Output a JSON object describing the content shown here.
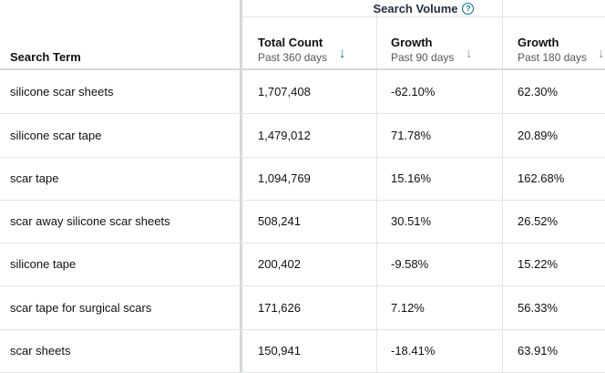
{
  "header": {
    "group_title": "Search Volume",
    "help_icon": "question-circle-icon",
    "columns": {
      "search_term": "Search Term",
      "total_count": {
        "title": "Total Count",
        "sub": "Past 360 days",
        "sort_icon": "arrow-down-icon",
        "sort_color": "#007185"
      },
      "growth_90": {
        "title": "Growth",
        "sub": "Past 90 days",
        "sort_icon": "arrow-down-icon",
        "sort_color": "#8d9096"
      },
      "growth_180": {
        "title": "Growth",
        "sub": "Past 180 days",
        "sort_icon": "arrow-down-icon",
        "sort_color": "#8d9096"
      }
    }
  },
  "rows": [
    {
      "term": "silicone scar sheets",
      "total": "1,707,408",
      "g90": "-62.10%",
      "g180": "62.30%"
    },
    {
      "term": "silicone scar tape",
      "total": "1,479,012",
      "g90": "71.78%",
      "g180": "20.89%"
    },
    {
      "term": "scar tape",
      "total": "1,094,769",
      "g90": "15.16%",
      "g180": "162.68%"
    },
    {
      "term": "scar away silicone scar sheets",
      "total": "508,241",
      "g90": "30.51%",
      "g180": "26.52%"
    },
    {
      "term": "silicone tape",
      "total": "200,402",
      "g90": "-9.58%",
      "g180": "15.22%"
    },
    {
      "term": "scar tape for surgical scars",
      "total": "171,626",
      "g90": "7.12%",
      "g180": "56.33%"
    },
    {
      "term": "scar sheets",
      "total": "150,941",
      "g90": "-18.41%",
      "g180": "63.91%"
    }
  ]
}
